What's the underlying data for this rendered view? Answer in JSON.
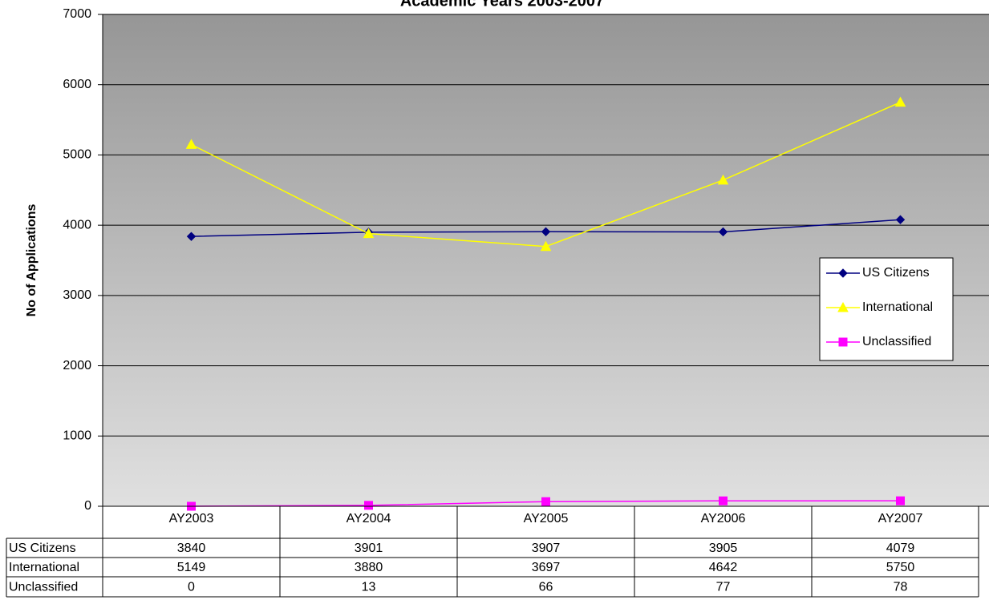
{
  "chart_data": {
    "type": "line",
    "title": "Academic Years 2003-2007",
    "y_label": "No of Applications",
    "categories": [
      "AY2003",
      "AY2004",
      "AY2005",
      "AY2006",
      "AY2007"
    ],
    "series": [
      {
        "name": "US Citizens",
        "color": "#000080",
        "marker": "diamond",
        "values": [
          3840,
          3901,
          3907,
          3905,
          4079
        ]
      },
      {
        "name": "International",
        "color": "#ffff00",
        "marker": "triangle",
        "values": [
          5149,
          3880,
          3697,
          4642,
          5750
        ]
      },
      {
        "name": "Unclassified",
        "color": "#ff00ff",
        "marker": "square",
        "values": [
          0,
          13,
          66,
          77,
          78
        ]
      }
    ],
    "ylim": [
      0,
      7000
    ],
    "yticks": [
      0,
      1000,
      2000,
      3000,
      4000,
      5000,
      6000,
      7000
    ],
    "grid": true,
    "legend": "right",
    "data_table": true
  }
}
